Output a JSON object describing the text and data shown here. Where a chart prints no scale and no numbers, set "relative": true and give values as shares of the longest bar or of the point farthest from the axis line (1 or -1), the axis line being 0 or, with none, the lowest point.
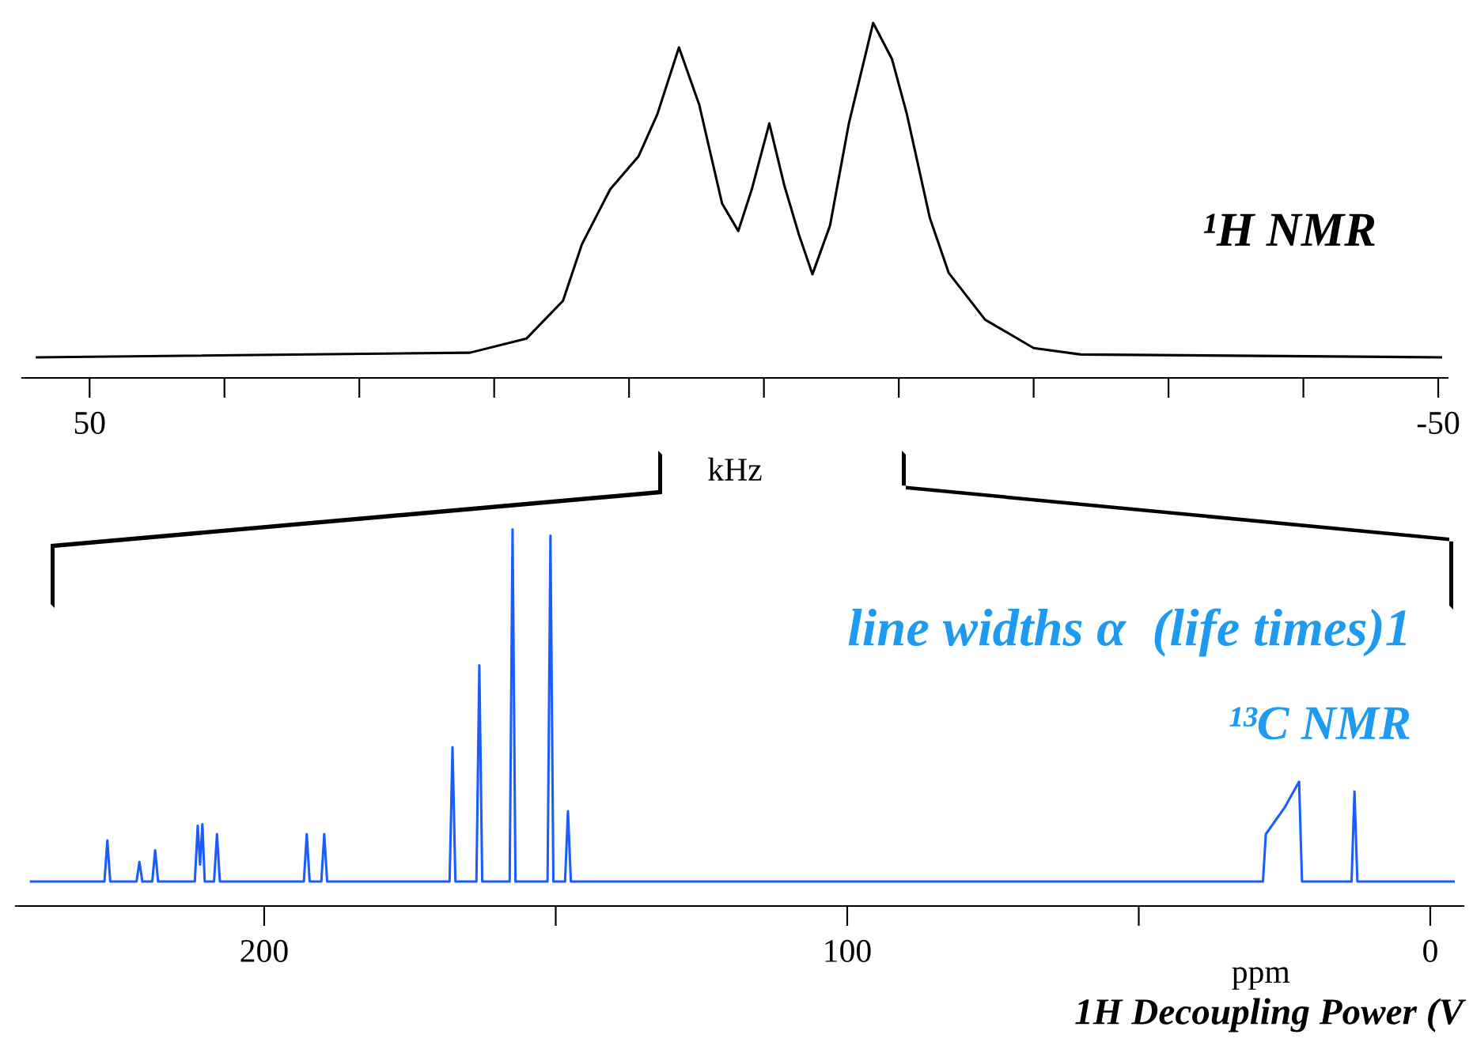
{
  "chart_data": [
    {
      "type": "line",
      "relative": true,
      "xlabel": "kHz",
      "xlim": [
        55.0,
        -50.7
      ],
      "xticks": [
        50,
        {
          "value": 40,
          "label": null
        },
        {
          "value": 30,
          "label": null
        },
        {
          "value": 20,
          "label": null
        },
        {
          "value": 10,
          "label": null
        },
        {
          "value": 0,
          "label": null
        },
        {
          "value": -10,
          "label": null
        },
        {
          "value": -20,
          "label": null
        },
        {
          "value": -30,
          "label": null
        },
        {
          "value": -40,
          "label": null
        },
        -50
      ],
      "annotations": [
        "¹H NMR"
      ],
      "series": [
        {
          "color": "#000000",
          "x": [
            53.9,
            21.8,
            17.6,
            14.9,
            13.5,
            11.4,
            9.3,
            7.9,
            6.3,
            4.8,
            3.1,
            1.9,
            0.9,
            -0.4,
            -1.5,
            -2.6,
            -3.6,
            -4.9,
            -6.3,
            -8.1,
            -9.5,
            -10.6,
            -12.3,
            -13.7,
            -16.4,
            -20.0,
            -23.5,
            -50.2
          ],
          "values": [
            0.058,
            0.071,
            0.111,
            0.217,
            0.376,
            0.531,
            0.624,
            0.743,
            0.931,
            0.77,
            0.491,
            0.414,
            0.531,
            0.717,
            0.544,
            0.403,
            0.292,
            0.429,
            0.717,
            1.0,
            0.898,
            0.743,
            0.451,
            0.296,
            0.164,
            0.084,
            0.066,
            0.058
          ]
        }
      ]
    },
    {
      "type": "line",
      "relative": true,
      "xlabel": "ppm",
      "xlim": [
        242.6,
        -5.7
      ],
      "xticks": [
        200,
        {
          "value": 150,
          "label": null
        },
        100,
        {
          "value": 50,
          "label": null
        },
        0
      ],
      "annotations": [
        "line widths α  (life times)1",
        "¹³C NMR",
        "1H Decoupling Power (V"
      ],
      "series": [
        {
          "color": "#1a5cff",
          "x": [
            240.0,
            227.4,
            226.9,
            226.4,
            221.9,
            221.4,
            220.9,
            219.2,
            218.7,
            218.2,
            211.9,
            211.4,
            211.0,
            210.6,
            210.2,
            208.6,
            208.1,
            207.6,
            193.2,
            192.7,
            192.2,
            190.2,
            189.7,
            189.2,
            168.2,
            167.7,
            167.2,
            163.6,
            163.1,
            162.6,
            157.9,
            157.4,
            156.9,
            151.4,
            150.9,
            150.4,
            148.4,
            147.9,
            147.4,
            28.7,
            28.2,
            25.0,
            22.5,
            22.0,
            13.5,
            13.0,
            12.5,
            -4.0
          ],
          "values": [
            0.065,
            0.065,
            0.174,
            0.065,
            0.065,
            0.117,
            0.065,
            0.065,
            0.148,
            0.065,
            0.065,
            0.213,
            0.11,
            0.217,
            0.065,
            0.065,
            0.191,
            0.065,
            0.065,
            0.191,
            0.065,
            0.065,
            0.191,
            0.065,
            0.065,
            0.422,
            0.065,
            0.065,
            0.639,
            0.065,
            0.065,
            1.0,
            0.065,
            0.065,
            0.983,
            0.065,
            0.065,
            0.252,
            0.065,
            0.065,
            0.191,
            0.261,
            0.33,
            0.065,
            0.065,
            0.304,
            0.065,
            0.065
          ]
        }
      ]
    }
  ]
}
